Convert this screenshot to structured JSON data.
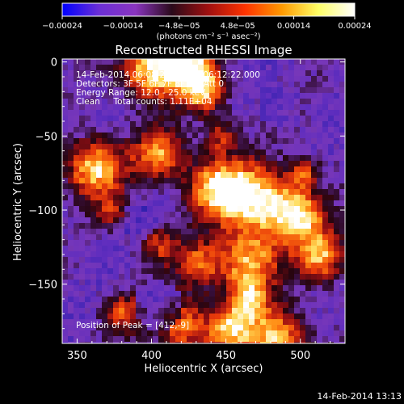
{
  "chart_data": {
    "type": "heatmap",
    "title": "Reconstructed RHESSI Image",
    "xlabel": "Heliocentric X (arcsec)",
    "ylabel": "Heliocentric Y (arcsec)",
    "xlim": [
      340,
      530
    ],
    "ylim": [
      -190,
      2
    ],
    "x_ticks": [
      {
        "value": 350,
        "label": "350"
      },
      {
        "value": 400,
        "label": "400"
      },
      {
        "value": 450,
        "label": "450"
      },
      {
        "value": 500,
        "label": "500"
      }
    ],
    "y_ticks": [
      {
        "value": 0,
        "label": "0"
      },
      {
        "value": -50,
        "label": "−50"
      },
      {
        "value": -100,
        "label": "−100"
      },
      {
        "value": -150,
        "label": "−150"
      }
    ],
    "colorbar": {
      "min": -0.00024,
      "max": 0.00024,
      "ticks": [
        {
          "value": -0.00024,
          "label": "−0.00024"
        },
        {
          "value": -0.00014,
          "label": "−0.00014"
        },
        {
          "value": -4.8e-05,
          "label": "−4.8e−05"
        },
        {
          "value": 4.8e-05,
          "label": "4.8e−05"
        },
        {
          "value": 0.00014,
          "label": "0.00014"
        },
        {
          "value": 0.00024,
          "label": "0.00024"
        }
      ],
      "unit_label": "(photons cm⁻² s⁻¹ asec⁻²)",
      "colors": [
        "#0000ff",
        "#6b2fd6",
        "#8a35c0",
        "#2a0a1a",
        "#a01010",
        "#ff3300",
        "#ff9900",
        "#ffff66",
        "#ffffff"
      ]
    },
    "info_lines": [
      "14-Feb-2014 06:08:22.000 to 06:12:22.000",
      "Detectors: 3F 5F 6F 7F 8F 9F, Att 0",
      "Energy Range: 12.0 - 25.0 keV",
      "Clean     Total counts: 1.11E+04"
    ],
    "peak_text": "Position of Peak = [412,-9]",
    "peak_position": [
      412,
      -9
    ],
    "timestamp": "14-Feb-2014 13:13"
  }
}
